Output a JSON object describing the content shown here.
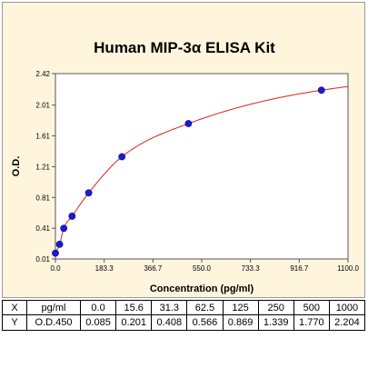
{
  "chart_data": {
    "type": "scatter",
    "title": "Human MIP-3α ELISA Kit",
    "xlabel": "Concentration (pg/ml)",
    "ylabel": "O.D.",
    "xlim": [
      0,
      1100
    ],
    "ylim": [
      0.01,
      2.42
    ],
    "x_ticks": [
      "0.0",
      "183.3",
      "366.7",
      "550.0",
      "733.3",
      "916.7",
      "1100.0"
    ],
    "y_ticks": [
      "0.01",
      "0.41",
      "0.81",
      "1.21",
      "1.61",
      "2.01",
      "2.42"
    ],
    "grid": false,
    "colors": {
      "points": "#1b1bd6",
      "curve": "#e02020",
      "background": "#fff5dd"
    },
    "series": [
      {
        "x": [
          0,
          15.6,
          31.3,
          62.5,
          125,
          250,
          500,
          1000
        ],
        "y": [
          0.085,
          0.201,
          0.408,
          0.566,
          0.869,
          1.339,
          1.77,
          2.204
        ]
      }
    ]
  },
  "table": {
    "row_x": {
      "label": "X",
      "unit": "pg/ml",
      "values": [
        "0.0",
        "15.6",
        "31.3",
        "62.5",
        "125",
        "250",
        "500",
        "1000"
      ]
    },
    "row_y": {
      "label": "Y",
      "unit": "O.D.450",
      "values": [
        "0.085",
        "0.201",
        "0.408",
        "0.566",
        "0.869",
        "1.339",
        "1.770",
        "2.204"
      ]
    }
  }
}
